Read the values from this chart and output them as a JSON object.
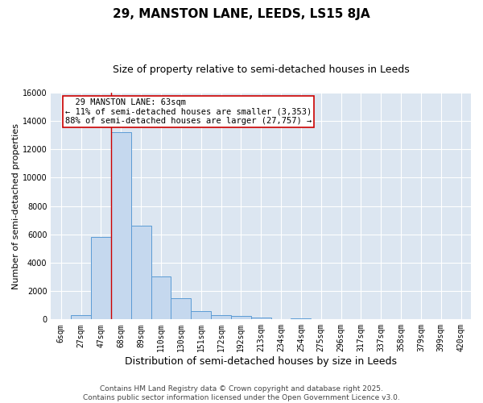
{
  "title1": "29, MANSTON LANE, LEEDS, LS15 8JA",
  "title2": "Size of property relative to semi-detached houses in Leeds",
  "xlabel": "Distribution of semi-detached houses by size in Leeds",
  "ylabel": "Number of semi-detached properties",
  "categories": [
    "6sqm",
    "27sqm",
    "47sqm",
    "68sqm",
    "89sqm",
    "110sqm",
    "130sqm",
    "151sqm",
    "172sqm",
    "192sqm",
    "213sqm",
    "234sqm",
    "254sqm",
    "275sqm",
    "296sqm",
    "317sqm",
    "337sqm",
    "358sqm",
    "379sqm",
    "399sqm",
    "420sqm"
  ],
  "bar_values": [
    0,
    300,
    5800,
    13200,
    6600,
    3050,
    1500,
    580,
    280,
    230,
    130,
    0,
    90,
    0,
    0,
    0,
    0,
    0,
    0,
    0,
    0
  ],
  "bar_color": "#c5d8ee",
  "bar_edge_color": "#5b9bd5",
  "background_color": "#dce6f1",
  "grid_color": "#ffffff",
  "red_line_x": 2.5,
  "annotation_text": "  29 MANSTON LANE: 63sqm\n← 11% of semi-detached houses are smaller (3,353)\n88% of semi-detached houses are larger (27,757) →",
  "annotation_box_color": "#ffffff",
  "annotation_box_edge": "#cc0000",
  "red_line_color": "#cc0000",
  "ylim": [
    0,
    16000
  ],
  "yticks": [
    0,
    2000,
    4000,
    6000,
    8000,
    10000,
    12000,
    14000,
    16000
  ],
  "footer1": "Contains HM Land Registry data © Crown copyright and database right 2025.",
  "footer2": "Contains public sector information licensed under the Open Government Licence v3.0.",
  "title1_fontsize": 11,
  "title2_fontsize": 9,
  "xlabel_fontsize": 9,
  "ylabel_fontsize": 8,
  "tick_fontsize": 7,
  "footer_fontsize": 6.5,
  "annot_fontsize": 7.5
}
